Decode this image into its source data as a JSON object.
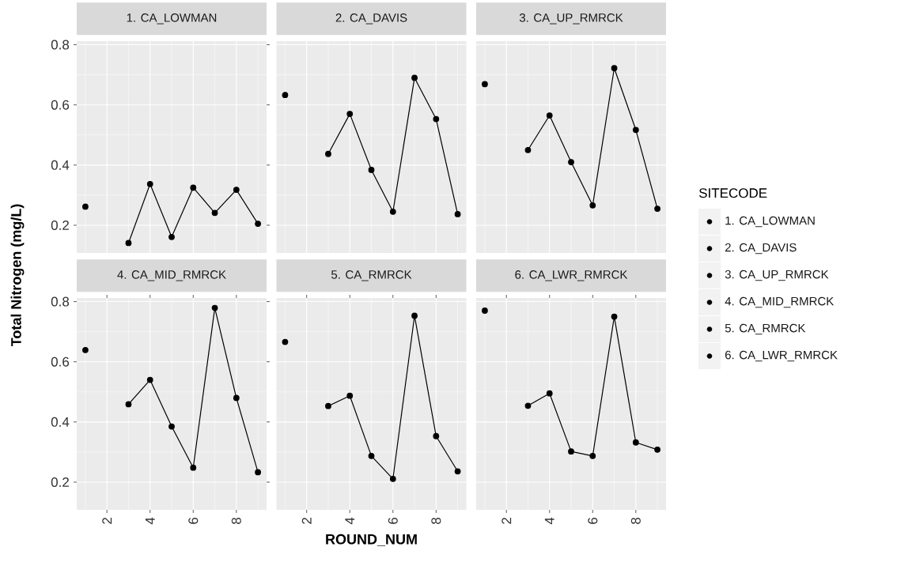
{
  "chart_data": [
    {
      "type": "line",
      "title": "1. CA_LOWMAN",
      "ylabel": "Total Nitrogen (mg/L)",
      "legend_title": "SITECODE",
      "legend": "right",
      "x": [
        1,
        2,
        3,
        4,
        5,
        6,
        7,
        8,
        9
      ],
      "xlim": [
        0.6,
        9.4
      ],
      "ylim": [
        0.108,
        0.812
      ],
      "xticks": [
        2,
        4,
        6,
        8
      ],
      "yticks": [
        0.2,
        0.4,
        0.6,
        0.8
      ],
      "tick_labels": "y",
      "grid": true,
      "marker": "circle",
      "line_style": "solid",
      "series": [
        {
          "name": "1. CA_LOWMAN",
          "color": "#000000",
          "values": [
            0.262,
            null,
            0.141,
            0.337,
            0.161,
            0.325,
            0.241,
            0.318,
            0.205
          ]
        }
      ]
    },
    {
      "type": "line",
      "title": "2. CA_DAVIS",
      "legend": "right",
      "x": [
        1,
        2,
        3,
        4,
        5,
        6,
        7,
        8,
        9
      ],
      "xlim": [
        0.6,
        9.4
      ],
      "ylim": [
        0.108,
        0.812
      ],
      "xticks": [
        2,
        4,
        6,
        8
      ],
      "yticks": [
        0.2,
        0.4,
        0.6,
        0.8
      ],
      "tick_labels": false,
      "grid": true,
      "marker": "circle",
      "line_style": "solid",
      "series": [
        {
          "name": "2. CA_DAVIS",
          "color": "#000000",
          "values": [
            0.633,
            null,
            0.437,
            0.57,
            0.384,
            0.245,
            0.69,
            0.553,
            0.237
          ]
        }
      ]
    },
    {
      "type": "line",
      "title": "3. CA_UP_RMRCK",
      "legend": "right",
      "x": [
        1,
        2,
        3,
        4,
        5,
        6,
        7,
        8,
        9
      ],
      "xlim": [
        0.6,
        9.4
      ],
      "ylim": [
        0.108,
        0.812
      ],
      "xticks": [
        2,
        4,
        6,
        8
      ],
      "yticks": [
        0.2,
        0.4,
        0.6,
        0.8
      ],
      "tick_labels": false,
      "grid": true,
      "marker": "circle",
      "line_style": "solid",
      "series": [
        {
          "name": "3. CA_UP_RMRCK",
          "color": "#000000",
          "values": [
            0.669,
            null,
            0.45,
            0.565,
            0.41,
            0.266,
            0.722,
            0.517,
            0.255
          ]
        }
      ]
    },
    {
      "type": "line",
      "title": "4. CA_MID_RMRCK",
      "legend": "right",
      "x": [
        1,
        2,
        3,
        4,
        5,
        6,
        7,
        8,
        9
      ],
      "xlim": [
        0.6,
        9.4
      ],
      "ylim": [
        0.108,
        0.812
      ],
      "xticks": [
        2,
        4,
        6,
        8
      ],
      "yticks": [
        0.2,
        0.4,
        0.6,
        0.8
      ],
      "grid": true,
      "marker": "circle",
      "line_style": "solid",
      "series": [
        {
          "name": "4. CA_MID_RMRCK",
          "color": "#000000",
          "values": [
            0.639,
            null,
            0.459,
            0.54,
            0.385,
            0.248,
            0.779,
            0.48,
            0.233
          ]
        }
      ]
    },
    {
      "type": "line",
      "title": "5. CA_RMRCK",
      "xlabel": "ROUND_NUM",
      "legend": "right",
      "x": [
        1,
        2,
        3,
        4,
        5,
        6,
        7,
        8,
        9
      ],
      "xlim": [
        0.6,
        9.4
      ],
      "ylim": [
        0.108,
        0.812
      ],
      "xticks": [
        2,
        4,
        6,
        8
      ],
      "yticks": [
        0.2,
        0.4,
        0.6,
        0.8
      ],
      "tick_labels": "x",
      "grid": true,
      "marker": "circle",
      "line_style": "solid",
      "series": [
        {
          "name": "5. CA_RMRCK",
          "color": "#000000",
          "values": [
            0.666,
            null,
            0.453,
            0.487,
            0.287,
            0.211,
            0.753,
            0.353,
            0.236
          ]
        }
      ]
    },
    {
      "type": "line",
      "title": "6. CA_LWR_RMRCK",
      "legend": "right",
      "x": [
        1,
        2,
        3,
        4,
        5,
        6,
        7,
        8,
        9
      ],
      "xlim": [
        0.6,
        9.4
      ],
      "ylim": [
        0.108,
        0.812
      ],
      "xticks": [
        2,
        4,
        6,
        8
      ],
      "yticks": [
        0.2,
        0.4,
        0.6,
        0.8
      ],
      "tick_labels": "x",
      "grid": true,
      "marker": "circle",
      "line_style": "solid",
      "series": [
        {
          "name": "6. CA_LWR_RMRCK",
          "color": "#000000",
          "values": [
            0.77,
            null,
            0.454,
            0.495,
            0.302,
            0.287,
            0.75,
            0.332,
            0.308
          ]
        }
      ]
    }
  ]
}
